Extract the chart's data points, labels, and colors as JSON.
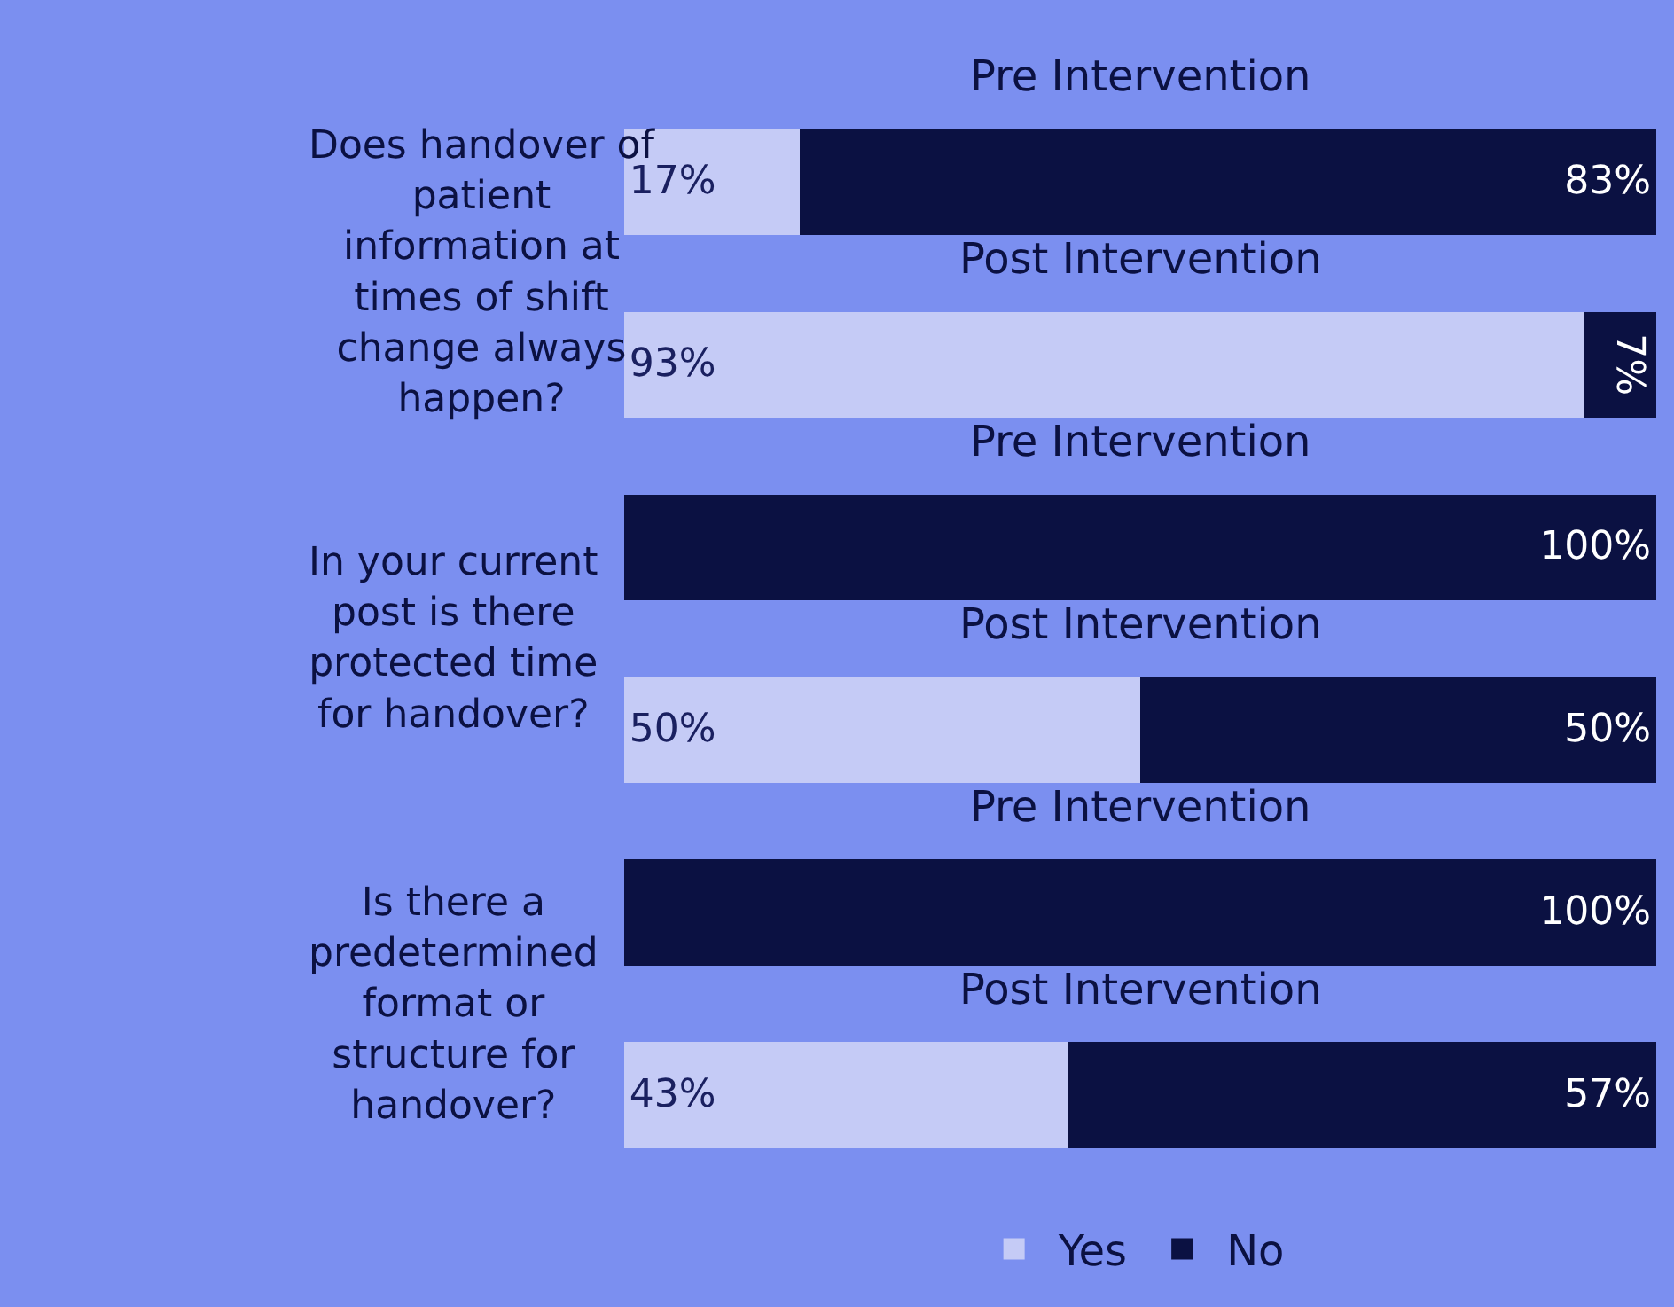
{
  "chart_data": {
    "type": "bar",
    "orientation": "horizontal",
    "stacked": true,
    "xlim": [
      0,
      100
    ],
    "tick_labels": false,
    "legend": "bottom",
    "categories": [
      "Pre Intervention",
      "Post Intervention",
      "Pre Intervention",
      "Post Intervention",
      "Pre Intervention",
      "Post Intervention"
    ],
    "annotations": [
      "Does handover of patient information at times of shift change always happen?",
      "In your current post is there protected time for handover?",
      "Is there a predetermined format or structure for handover?"
    ],
    "series": [
      {
        "name": "Yes",
        "color": "#c5cbf6",
        "values": [
          17,
          93,
          0,
          50,
          0,
          43
        ],
        "value_labels": [
          "17%",
          "93%",
          null,
          "50%",
          null,
          "43%"
        ]
      },
      {
        "name": "No",
        "color": "#0b1142",
        "values": [
          83,
          7,
          100,
          50,
          100,
          57
        ],
        "value_labels": [
          "83%",
          "7%",
          "100%",
          "50%",
          "100%",
          "57%"
        ]
      }
    ]
  }
}
